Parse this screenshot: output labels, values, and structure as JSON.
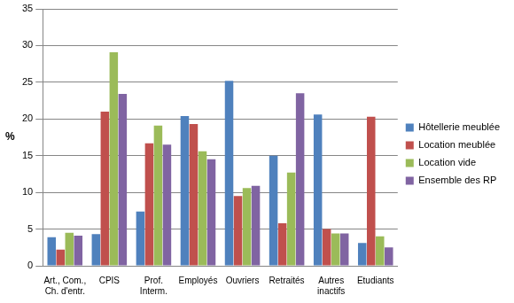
{
  "chart_data": {
    "type": "bar",
    "y_label": "%",
    "categories": [
      "Art., Com., Ch. d'entr.",
      "CPIS",
      "Prof. Interm.",
      "Employés",
      "Ouvriers",
      "Retraités",
      "Autres inactifs",
      "Etudiants"
    ],
    "series": [
      {
        "name": "Hôtellerie meublée",
        "color": "#4f81bd",
        "values": [
          3.9,
          4.3,
          7.4,
          20.4,
          25.2,
          15.0,
          20.6,
          3.1
        ]
      },
      {
        "name": "Location meublée",
        "color": "#c0504d",
        "values": [
          2.2,
          21.0,
          16.7,
          19.3,
          9.5,
          5.8,
          5.0,
          20.3
        ]
      },
      {
        "name": "Location vide",
        "color": "#9bbb59",
        "values": [
          4.5,
          29.1,
          19.1,
          15.6,
          10.6,
          12.7,
          4.4,
          4.0
        ]
      },
      {
        "name": "Ensemble des RP",
        "color": "#8064a2",
        "values": [
          4.1,
          23.4,
          16.5,
          14.5,
          10.9,
          23.5,
          4.4,
          2.5
        ]
      }
    ],
    "ylim": [
      0,
      35
    ],
    "yticks": [
      0,
      5,
      10,
      15,
      20,
      25,
      30,
      35
    ],
    "grid": true,
    "legend": "right"
  }
}
